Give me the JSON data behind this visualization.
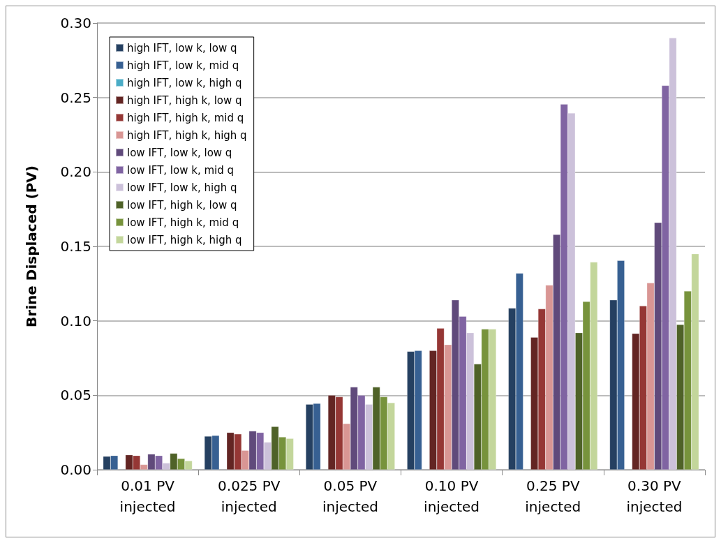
{
  "chart_data": {
    "type": "bar",
    "ylabel": "Brine Displaced (PV)",
    "categories": [
      "0.01 PV\ninjected",
      "0.025 PV\ninjected",
      "0.05 PV\ninjected",
      "0.10 PV\ninjected",
      "0.25 PV\ninjected",
      "0.30 PV\ninjected"
    ],
    "series": [
      {
        "name": "high IFT, low k, low q",
        "color": "#254061",
        "values": [
          0.009,
          0.0225,
          0.044,
          0.0795,
          0.1085,
          0.114
        ]
      },
      {
        "name": "high IFT, low k, mid q",
        "color": "#376092",
        "values": [
          0.0095,
          0.023,
          0.0445,
          0.08,
          0.132,
          0.1405
        ]
      },
      {
        "name": "high IFT, low k, high q",
        "color": "#4bacc6",
        "values": [
          null,
          null,
          null,
          null,
          null,
          null
        ]
      },
      {
        "name": "high IFT, high k, low q",
        "color": "#632523",
        "values": [
          0.01,
          0.025,
          0.05,
          0.08,
          0.089,
          0.0915
        ]
      },
      {
        "name": "high IFT, high k, mid q",
        "color": "#953735",
        "values": [
          0.0095,
          0.024,
          0.049,
          0.095,
          0.108,
          0.11
        ]
      },
      {
        "name": "high IFT, high k, high q",
        "color": "#d99694",
        "values": [
          0.0035,
          0.013,
          0.031,
          0.084,
          0.124,
          0.1255
        ]
      },
      {
        "name": "low IFT, low k, low q",
        "color": "#604a7b",
        "values": [
          0.0105,
          0.026,
          0.0555,
          0.114,
          0.158,
          0.166
        ]
      },
      {
        "name": "low IFT, low k, mid q",
        "color": "#8064a2",
        "values": [
          0.0095,
          0.025,
          0.05,
          0.103,
          0.2455,
          0.258
        ]
      },
      {
        "name": "low IFT, low k, high q",
        "color": "#ccc1da",
        "values": [
          0.0045,
          0.0185,
          0.044,
          0.092,
          0.2395,
          0.29
        ]
      },
      {
        "name": "low IFT, high k, low q",
        "color": "#4f6228",
        "values": [
          0.011,
          0.029,
          0.0555,
          0.071,
          0.092,
          0.0975
        ]
      },
      {
        "name": "low IFT, high k, mid q",
        "color": "#77933c",
        "values": [
          0.0075,
          0.022,
          0.049,
          0.0945,
          0.113,
          0.12
        ]
      },
      {
        "name": "low IFT, high k, high q",
        "color": "#c3d69b",
        "values": [
          0.006,
          0.021,
          0.045,
          0.0945,
          0.1395,
          0.145
        ]
      }
    ],
    "ylim": [
      0,
      0.3
    ],
    "yticks": [
      {
        "value": 0,
        "label": "0.00"
      },
      0.05,
      {
        "value": 0.1,
        "label": "0.10"
      },
      0.15,
      {
        "value": 0.2,
        "label": "0.20"
      },
      0.25,
      {
        "value": 0.3,
        "label": "0.30"
      }
    ],
    "grid": "y",
    "legend": "top left"
  }
}
